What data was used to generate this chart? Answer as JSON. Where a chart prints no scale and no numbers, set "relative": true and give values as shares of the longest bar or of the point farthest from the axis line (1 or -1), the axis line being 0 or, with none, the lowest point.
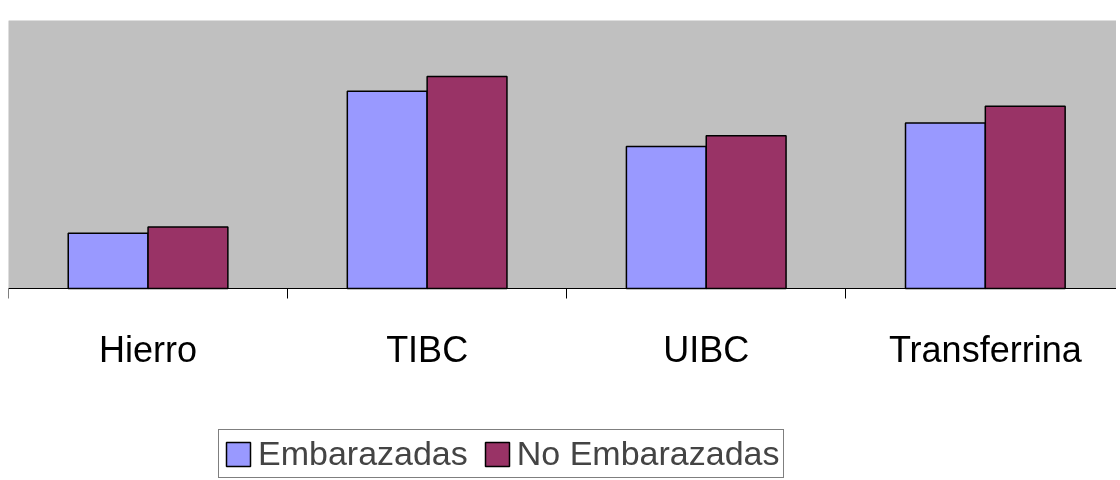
{
  "chart_data": {
    "type": "bar",
    "relative": true,
    "categories": [
      "Hierro",
      "TIBC",
      "UIBC",
      "Transferrina"
    ],
    "series": [
      {
        "name": "Embarazadas",
        "color": "#9999ff",
        "values": [
          0.26,
          0.93,
          0.67,
          0.78
        ]
      },
      {
        "name": "No Embarazadas",
        "color": "#993366",
        "values": [
          0.29,
          1,
          0.72,
          0.86
        ]
      }
    ],
    "legend": "bottom"
  }
}
